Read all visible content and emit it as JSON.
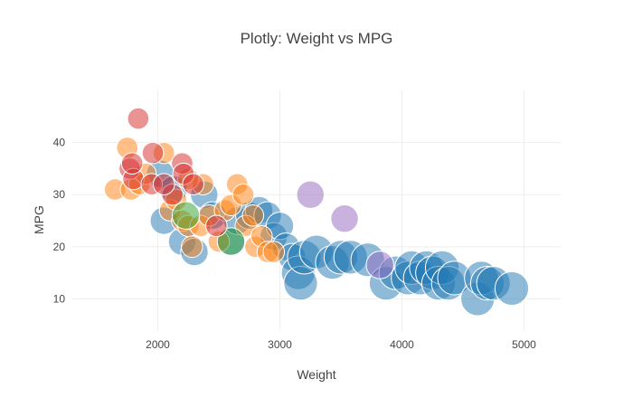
{
  "chart_data": {
    "type": "scatter",
    "title": "Plotly: Weight vs MPG",
    "xlabel": "Weight",
    "ylabel": "MPG",
    "xlim": [
      1300,
      5300
    ],
    "ylim": [
      4,
      50
    ],
    "xticks": [
      2000,
      3000,
      4000,
      5000
    ],
    "yticks": [
      10,
      20,
      30,
      40
    ],
    "grid": true,
    "legend": "none",
    "colors": {
      "blue": "#1f77b4",
      "orange": "#ff7f0e",
      "green": "#2ca02c",
      "red": "#d62728",
      "purple": "#9467bd"
    },
    "marker_size_encodes": "cylinders",
    "series": [
      {
        "color_key": "blue",
        "points": [
          {
            "x": 2050,
            "y": 25,
            "s": 6
          },
          {
            "x": 2200,
            "y": 21,
            "s": 6
          },
          {
            "x": 2300,
            "y": 19,
            "s": 6
          },
          {
            "x": 2380,
            "y": 30,
            "s": 6
          },
          {
            "x": 2450,
            "y": 26,
            "s": 6
          },
          {
            "x": 2600,
            "y": 21,
            "s": 6
          },
          {
            "x": 2650,
            "y": 25,
            "s": 6
          },
          {
            "x": 2750,
            "y": 26,
            "s": 6
          },
          {
            "x": 2830,
            "y": 27,
            "s": 6
          },
          {
            "x": 2900,
            "y": 26,
            "s": 6
          },
          {
            "x": 2950,
            "y": 22,
            "s": 6
          },
          {
            "x": 3000,
            "y": 24,
            "s": 6
          },
          {
            "x": 3050,
            "y": 20,
            "s": 6
          },
          {
            "x": 3100,
            "y": 18,
            "s": 6
          },
          {
            "x": 3150,
            "y": 15,
            "s": 8
          },
          {
            "x": 3170,
            "y": 13,
            "s": 8
          },
          {
            "x": 3200,
            "y": 18,
            "s": 8
          },
          {
            "x": 3300,
            "y": 19,
            "s": 8
          },
          {
            "x": 3430,
            "y": 17,
            "s": 8
          },
          {
            "x": 3500,
            "y": 18,
            "s": 8
          },
          {
            "x": 3580,
            "y": 18,
            "s": 8
          },
          {
            "x": 3720,
            "y": 17.5,
            "s": 8
          },
          {
            "x": 3870,
            "y": 13,
            "s": 8
          },
          {
            "x": 3950,
            "y": 15,
            "s": 8
          },
          {
            "x": 4050,
            "y": 14,
            "s": 8
          },
          {
            "x": 4080,
            "y": 16,
            "s": 8
          },
          {
            "x": 4150,
            "y": 14,
            "s": 8
          },
          {
            "x": 4200,
            "y": 16,
            "s": 8
          },
          {
            "x": 4250,
            "y": 15,
            "s": 8
          },
          {
            "x": 4300,
            "y": 13,
            "s": 8
          },
          {
            "x": 4330,
            "y": 16,
            "s": 8
          },
          {
            "x": 4380,
            "y": 13,
            "s": 8
          },
          {
            "x": 4430,
            "y": 14,
            "s": 8
          },
          {
            "x": 4620,
            "y": 10,
            "s": 8
          },
          {
            "x": 4650,
            "y": 14,
            "s": 8
          },
          {
            "x": 4700,
            "y": 13,
            "s": 8
          },
          {
            "x": 4750,
            "y": 13,
            "s": 8
          },
          {
            "x": 4900,
            "y": 12,
            "s": 8
          },
          {
            "x": 2020,
            "y": 34,
            "s": 6
          },
          {
            "x": 2130,
            "y": 31,
            "s": 6
          }
        ]
      },
      {
        "color_key": "orange",
        "points": [
          {
            "x": 1650,
            "y": 31,
            "s": 4
          },
          {
            "x": 1750,
            "y": 39,
            "s": 4
          },
          {
            "x": 1780,
            "y": 31,
            "s": 4
          },
          {
            "x": 1850,
            "y": 32,
            "s": 4
          },
          {
            "x": 1900,
            "y": 34,
            "s": 4
          },
          {
            "x": 2050,
            "y": 38,
            "s": 4
          },
          {
            "x": 2100,
            "y": 27,
            "s": 4
          },
          {
            "x": 2150,
            "y": 29,
            "s": 4
          },
          {
            "x": 2200,
            "y": 25,
            "s": 4
          },
          {
            "x": 2250,
            "y": 24,
            "s": 4
          },
          {
            "x": 2280,
            "y": 20,
            "s": 4
          },
          {
            "x": 2350,
            "y": 24,
            "s": 4
          },
          {
            "x": 2370,
            "y": 32,
            "s": 4
          },
          {
            "x": 2420,
            "y": 26,
            "s": 4
          },
          {
            "x": 2500,
            "y": 21,
            "s": 4
          },
          {
            "x": 2550,
            "y": 27,
            "s": 4
          },
          {
            "x": 2600,
            "y": 28,
            "s": 4
          },
          {
            "x": 2650,
            "y": 32,
            "s": 4
          },
          {
            "x": 2700,
            "y": 30,
            "s": 4
          },
          {
            "x": 2720,
            "y": 24,
            "s": 4
          },
          {
            "x": 2780,
            "y": 26,
            "s": 4
          },
          {
            "x": 2800,
            "y": 20,
            "s": 4
          },
          {
            "x": 2850,
            "y": 22,
            "s": 4
          },
          {
            "x": 2900,
            "y": 19,
            "s": 4
          },
          {
            "x": 2950,
            "y": 19,
            "s": 4
          },
          {
            "x": 2250,
            "y": 33,
            "s": 4
          }
        ]
      },
      {
        "color_key": "green",
        "points": [
          {
            "x": 2230,
            "y": 26,
            "s": 6
          },
          {
            "x": 2600,
            "y": 21,
            "s": 6
          }
        ]
      },
      {
        "color_key": "red",
        "points": [
          {
            "x": 1840,
            "y": 44.6,
            "s": 4
          },
          {
            "x": 1960,
            "y": 38,
            "s": 4
          },
          {
            "x": 1770,
            "y": 35,
            "s": 4
          },
          {
            "x": 1800,
            "y": 33,
            "s": 4
          },
          {
            "x": 1790,
            "y": 36,
            "s": 4
          },
          {
            "x": 1950,
            "y": 32,
            "s": 4
          },
          {
            "x": 2120,
            "y": 30,
            "s": 4
          },
          {
            "x": 2200,
            "y": 36,
            "s": 4
          },
          {
            "x": 2210,
            "y": 34,
            "s": 4
          },
          {
            "x": 2290,
            "y": 32,
            "s": 4
          },
          {
            "x": 2480,
            "y": 24,
            "s": 4
          },
          {
            "x": 2050,
            "y": 32,
            "s": 4
          }
        ]
      },
      {
        "color_key": "purple",
        "points": [
          {
            "x": 3250,
            "y": 30,
            "s": 6
          },
          {
            "x": 3530,
            "y": 25.4,
            "s": 6
          },
          {
            "x": 3820,
            "y": 16.5,
            "s": 6
          }
        ]
      }
    ]
  }
}
